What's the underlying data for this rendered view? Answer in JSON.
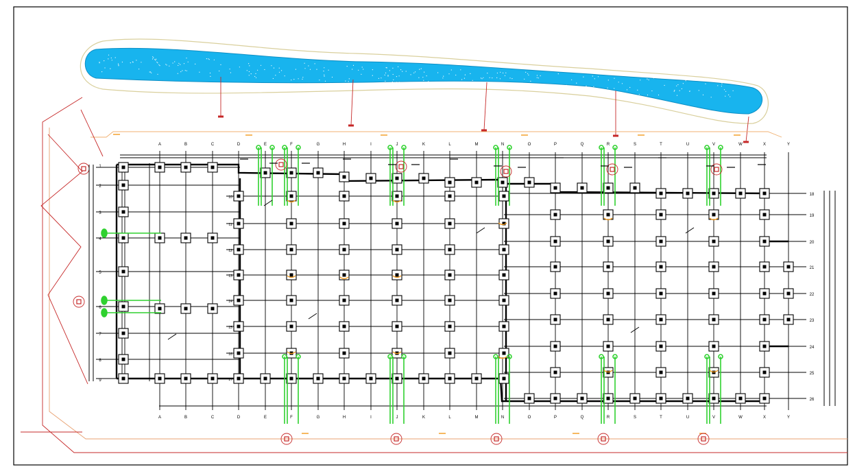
{
  "drawing": {
    "col_labels_top": [
      "A",
      "B",
      "C",
      "D",
      "E",
      "F",
      "G",
      "H",
      "I",
      "J",
      "K",
      "L",
      "M",
      "N",
      "O",
      "P",
      "Q",
      "R",
      "S",
      "T",
      "U",
      "V",
      "W",
      "X",
      "Y"
    ],
    "col_labels_bottom": [
      "A",
      "B",
      "C",
      "D",
      "E",
      "F",
      "G",
      "H",
      "I",
      "J",
      "K",
      "L",
      "M",
      "N",
      "O",
      "P",
      "Q",
      "R",
      "S",
      "T",
      "U",
      "V",
      "W",
      "X",
      "Y"
    ],
    "row_labels_left": [
      "1",
      "2",
      "3",
      "4",
      "5",
      "6",
      "7",
      "8",
      "9"
    ],
    "row_labels_mid": [
      "10",
      "11",
      "12",
      "13",
      "14",
      "15",
      "16",
      "17"
    ],
    "row_labels_right": [
      "18",
      "19",
      "20",
      "21",
      "22",
      "23",
      "24",
      "25",
      "26"
    ],
    "colors": {
      "frame": "#000000",
      "grid": "#000000",
      "drainage": "#c62828",
      "water_fill": "#18b4ee",
      "pond_outline": "#d9cf9c",
      "equipment": "#2fd12f",
      "orange_marks": "#f39a1c"
    },
    "icons": [
      "column-pier",
      "wellhead-symbol",
      "drain-outlet",
      "green-pipe-loop"
    ]
  }
}
